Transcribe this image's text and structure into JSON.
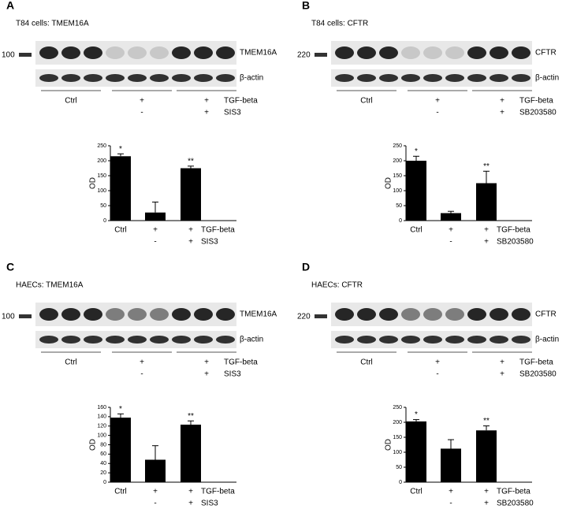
{
  "panels": [
    {
      "letter": "A",
      "blot_title": "T84 cells: TMEM16A",
      "marker": "100",
      "bands": [
        "TMEM16A",
        "β-actin"
      ],
      "lane_labels": [
        "Ctrl",
        "+",
        "+"
      ],
      "lane_second_row": [
        null,
        "-",
        "+"
      ],
      "lane_row_names": [
        "TGF-beta",
        "SIS3"
      ]
    },
    {
      "letter": "B",
      "blot_title": "T84 cells: CFTR",
      "marker": "220",
      "bands": [
        "CFTR",
        "β-actin"
      ],
      "lane_labels": [
        "Ctrl",
        "+",
        "+"
      ],
      "lane_second_row": [
        null,
        "-",
        "+"
      ],
      "lane_row_names": [
        "TGF-beta",
        "SB203580"
      ]
    },
    {
      "letter": "C",
      "blot_title": "HAECs: TMEM16A",
      "marker": "100",
      "bands": [
        "TMEM16A",
        "β-actin"
      ],
      "lane_labels": [
        "Ctrl",
        "+",
        "+"
      ],
      "lane_second_row": [
        null,
        "-",
        "+"
      ],
      "lane_row_names": [
        "TGF-beta",
        "SIS3"
      ]
    },
    {
      "letter": "D",
      "blot_title": "HAECs: CFTR",
      "marker": "220",
      "bands": [
        "CFTR",
        "β-actin"
      ],
      "lane_labels": [
        "Ctrl",
        "+",
        "+"
      ],
      "lane_second_row": [
        null,
        "-",
        "+"
      ],
      "lane_row_names": [
        "TGF-beta",
        "SB203580"
      ]
    }
  ],
  "chart_data": [
    {
      "type": "bar",
      "y_label": "OD",
      "categories": [
        "Ctrl",
        "+",
        "+"
      ],
      "second_row": [
        null,
        "-",
        "+"
      ],
      "row_names": [
        "TGF-beta",
        "SIS3"
      ],
      "values": [
        215,
        27,
        175
      ],
      "errors": [
        8,
        35,
        7
      ],
      "markers": [
        "*",
        null,
        "**"
      ],
      "color": "#000000",
      "ylim": [
        0,
        250
      ],
      "yticks": [
        0,
        50,
        100,
        150,
        200,
        250
      ]
    },
    {
      "type": "bar",
      "y_label": "OD",
      "categories": [
        "Ctrl",
        "+",
        "+"
      ],
      "second_row": [
        null,
        "-",
        "+"
      ],
      "row_names": [
        "TGF-beta",
        "SB203580"
      ],
      "values": [
        200,
        25,
        125
      ],
      "errors": [
        15,
        6,
        40
      ],
      "markers": [
        "*",
        null,
        "**"
      ],
      "color": "#000000",
      "ylim": [
        0,
        250
      ],
      "yticks": [
        0,
        50,
        100,
        150,
        200,
        250
      ]
    },
    {
      "type": "bar",
      "y_label": "OD",
      "categories": [
        "Ctrl",
        "+",
        "+"
      ],
      "second_row": [
        null,
        "-",
        "+"
      ],
      "row_names": [
        "TGF-beta",
        "SIS3"
      ],
      "values": [
        138,
        48,
        123
      ],
      "errors": [
        8,
        30,
        8
      ],
      "markers": [
        "*",
        null,
        "**"
      ],
      "color": "#000000",
      "ylim": [
        0,
        160
      ],
      "yticks": [
        0,
        20,
        40,
        60,
        80,
        100,
        120,
        140,
        160
      ]
    },
    {
      "type": "bar",
      "y_label": "OD",
      "categories": [
        "Ctrl",
        "+",
        "+"
      ],
      "second_row": [
        null,
        "-",
        "+"
      ],
      "row_names": [
        "TGF-beta",
        "SB203580"
      ],
      "values": [
        203,
        112,
        173
      ],
      "errors": [
        6,
        30,
        15
      ],
      "markers": [
        "*",
        null,
        "**"
      ],
      "color": "#000000",
      "ylim": [
        0,
        250
      ],
      "yticks": [
        0,
        50,
        100,
        150,
        200,
        250
      ]
    }
  ]
}
